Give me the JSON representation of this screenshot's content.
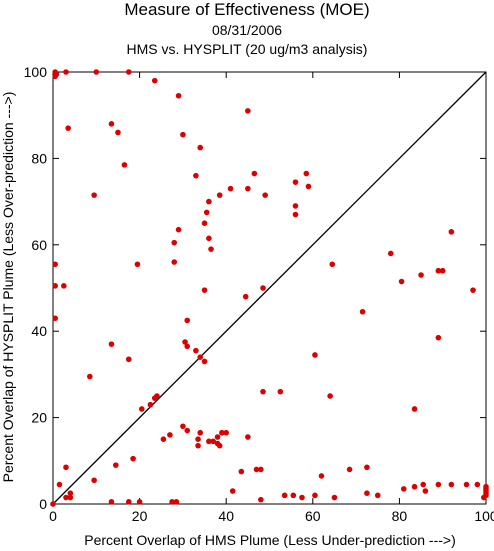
{
  "header": {
    "title": "Measure of Effectiveness (MOE)",
    "date": "08/31/2006",
    "subtitle": "HMS vs. HYSPLIT  (20 ug/m3 analysis)"
  },
  "chart_data": {
    "type": "scatter",
    "title": "Measure of Effectiveness (MOE)",
    "xlabel": "Percent Overlap of HMS Plume (Less Under-prediction --->)",
    "ylabel": "Percent Overlap of HYSPLIT Plume (Less Over-prediction --->)",
    "xlim": [
      0,
      100
    ],
    "ylim": [
      0,
      100
    ],
    "xticks": [
      0,
      20,
      40,
      60,
      80,
      100
    ],
    "yticks": [
      0,
      20,
      40,
      60,
      80,
      100
    ],
    "grid": false,
    "point_color": "#dd0000",
    "reference_line": {
      "from": [
        0,
        0
      ],
      "to": [
        100,
        100
      ]
    },
    "series": [
      {
        "points": [
          [
            0.5,
            100
          ],
          [
            0.5,
            99
          ],
          [
            0.8,
            99.5
          ],
          [
            3,
            100
          ],
          [
            10,
            100
          ],
          [
            17.5,
            100
          ],
          [
            23.5,
            98
          ],
          [
            29,
            94.5
          ],
          [
            45,
            91
          ],
          [
            3.5,
            87
          ],
          [
            13.5,
            88
          ],
          [
            15,
            86
          ],
          [
            30,
            85.5
          ],
          [
            34,
            82.5
          ],
          [
            16.5,
            78.5
          ],
          [
            33,
            76
          ],
          [
            46.5,
            76.5
          ],
          [
            58.5,
            76.5
          ],
          [
            56,
            74.5
          ],
          [
            59,
            73.5
          ],
          [
            41,
            73
          ],
          [
            45,
            73
          ],
          [
            38.5,
            71.5
          ],
          [
            49,
            71.5
          ],
          [
            9.5,
            71.5
          ],
          [
            56,
            69
          ],
          [
            36,
            70
          ],
          [
            35.5,
            67.5
          ],
          [
            56,
            67
          ],
          [
            35,
            65
          ],
          [
            29,
            63.5
          ],
          [
            28,
            60.5
          ],
          [
            36,
            61.5
          ],
          [
            36.5,
            59
          ],
          [
            19.5,
            55.5
          ],
          [
            28,
            56
          ],
          [
            0.5,
            55.5
          ],
          [
            64.5,
            55.5
          ],
          [
            78,
            58
          ],
          [
            85,
            53
          ],
          [
            89,
            54
          ],
          [
            90,
            54
          ],
          [
            80.5,
            51.5
          ],
          [
            0.5,
            50.5
          ],
          [
            2.5,
            50.5
          ],
          [
            35,
            49.5
          ],
          [
            48.5,
            50
          ],
          [
            44.5,
            48
          ],
          [
            97,
            49.5
          ],
          [
            0.5,
            43
          ],
          [
            31,
            42.5
          ],
          [
            71.5,
            44.5
          ],
          [
            13.5,
            37
          ],
          [
            30.5,
            37.5
          ],
          [
            31,
            36.5
          ],
          [
            33,
            35.5
          ],
          [
            34,
            34
          ],
          [
            35,
            33
          ],
          [
            17.5,
            33.5
          ],
          [
            60.5,
            34.5
          ],
          [
            89,
            38.5
          ],
          [
            92,
            63
          ],
          [
            8.5,
            29.5
          ],
          [
            48.5,
            26
          ],
          [
            52.5,
            26
          ],
          [
            64,
            25
          ],
          [
            24,
            25
          ],
          [
            23.5,
            24.5
          ],
          [
            22.5,
            23
          ],
          [
            20.5,
            22
          ],
          [
            83.5,
            22
          ],
          [
            30,
            18
          ],
          [
            31,
            17
          ],
          [
            34,
            16.5
          ],
          [
            27,
            16
          ],
          [
            38,
            15.5
          ],
          [
            39,
            16.5
          ],
          [
            40,
            16.5
          ],
          [
            45,
            15.5
          ],
          [
            25.5,
            15
          ],
          [
            33.5,
            15
          ],
          [
            36,
            14.5
          ],
          [
            37,
            14.5
          ],
          [
            38,
            14
          ],
          [
            33.5,
            13.5
          ],
          [
            38.5,
            13.5
          ],
          [
            14.5,
            9
          ],
          [
            18.5,
            10.5
          ],
          [
            43.5,
            7.5
          ],
          [
            47,
            8
          ],
          [
            48,
            8
          ],
          [
            68.5,
            8
          ],
          [
            72.5,
            8.5
          ],
          [
            3,
            8.5
          ],
          [
            9.5,
            5.5
          ],
          [
            1.5,
            4.5
          ],
          [
            4,
            2.5
          ],
          [
            3,
            1.5
          ],
          [
            4,
            1.5
          ],
          [
            0,
            0
          ],
          [
            13.5,
            0.5
          ],
          [
            17.5,
            0.5
          ],
          [
            20,
            0.5
          ],
          [
            27.5,
            0.5
          ],
          [
            28.5,
            0.5
          ],
          [
            41.5,
            3
          ],
          [
            48,
            1
          ],
          [
            53.5,
            2
          ],
          [
            55.5,
            2
          ],
          [
            57.5,
            1.5
          ],
          [
            60.5,
            2
          ],
          [
            65,
            1.5
          ],
          [
            72.5,
            2.5
          ],
          [
            75,
            2
          ],
          [
            81,
            3.5
          ],
          [
            83.5,
            4
          ],
          [
            86,
            3
          ],
          [
            85.5,
            4.5
          ],
          [
            89,
            4.5
          ],
          [
            92,
            4.5
          ],
          [
            95.5,
            4.5
          ],
          [
            98,
            4.5
          ],
          [
            99.5,
            1.5
          ],
          [
            100,
            2
          ],
          [
            100,
            2.5
          ],
          [
            100,
            3
          ],
          [
            100,
            3.5
          ],
          [
            100,
            4
          ],
          [
            62,
            6.5
          ]
        ]
      }
    ]
  }
}
